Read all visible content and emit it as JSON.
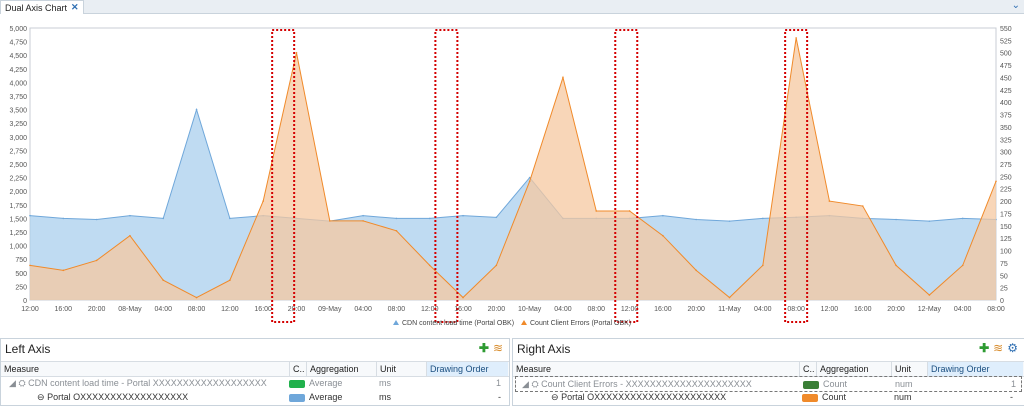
{
  "tab": {
    "title": "Dual Axis Chart"
  },
  "colors": {
    "blue": "#aacfee",
    "blue_line": "#6fa7da",
    "orange": "#f6c8a0",
    "orange_line": "#f08a2a",
    "overlap": "#dccbbb",
    "highlight": "#d40000",
    "green": "#21b14c",
    "darkgreen": "#3a7f36"
  },
  "chart_data": {
    "type": "area",
    "left_axis": {
      "ylim": [
        0,
        5000
      ],
      "ticks": [
        "0",
        "250",
        "500",
        "750",
        "1,000",
        "1,250",
        "1,500",
        "1,750",
        "2,000",
        "2,250",
        "2,500",
        "2,750",
        "3,000",
        "3,250",
        "3,500",
        "3,750",
        "4,000",
        "4,250",
        "4,500",
        "4,750",
        "5,000"
      ]
    },
    "right_axis": {
      "ylim": [
        0,
        550
      ],
      "ticks": [
        "0",
        "25",
        "50",
        "75",
        "100",
        "125",
        "150",
        "175",
        "200",
        "225",
        "250",
        "275",
        "300",
        "325",
        "350",
        "375",
        "400",
        "425",
        "450",
        "475",
        "500",
        "525",
        "550"
      ]
    },
    "x_ticks": [
      "12:00",
      "16:00",
      "20:00",
      "08-May",
      "04:00",
      "08:00",
      "12:00",
      "16:00",
      "20:00",
      "09-May",
      "04:00",
      "08:00",
      "12:00",
      "16:00",
      "20:00",
      "10-May",
      "04:00",
      "08:00",
      "12:00",
      "16:00",
      "20:00",
      "11-May",
      "04:00",
      "08:00",
      "12:00",
      "16:00",
      "20:00",
      "12-May",
      "04:00",
      "08:00"
    ],
    "legend": [
      "CDN content load time (Portal OBK)",
      "Count Client Errors (Portal OBK)"
    ],
    "series": [
      {
        "name": "CDN content load time (Portal OBK)",
        "axis": "left",
        "x": [
          0,
          1,
          2,
          3,
          4,
          5,
          6,
          7,
          8,
          9,
          10,
          11,
          12,
          13,
          14,
          15,
          16,
          17,
          18,
          19,
          20,
          21,
          22,
          23,
          24,
          25,
          26,
          27,
          28,
          29
        ],
        "values": [
          1550,
          1500,
          1480,
          1550,
          1500,
          3500,
          1500,
          1550,
          1500,
          1450,
          1550,
          1500,
          1500,
          1550,
          1520,
          2250,
          1500,
          1500,
          1500,
          1550,
          1480,
          1450,
          1500,
          1520,
          1550,
          1500,
          1480,
          1450,
          1500,
          1480
        ]
      },
      {
        "name": "Count Client Errors (Portal OBK)",
        "axis": "right",
        "x": [
          0,
          1,
          2,
          3,
          4,
          5,
          6,
          7,
          8,
          9,
          10,
          11,
          12,
          13,
          14,
          15,
          16,
          17,
          18,
          19,
          20,
          21,
          22,
          23,
          24,
          25,
          26,
          27,
          28,
          29
        ],
        "values": [
          70,
          60,
          80,
          130,
          40,
          5,
          40,
          200,
          500,
          160,
          160,
          140,
          70,
          5,
          70,
          240,
          450,
          180,
          180,
          130,
          60,
          5,
          70,
          530,
          200,
          190,
          70,
          10,
          70,
          240
        ]
      }
    ],
    "highlight_x": [
      7.6,
      12.5,
      17.9,
      23.0
    ]
  },
  "left_panel": {
    "title": "Left Axis",
    "headers": {
      "measure": "Measure",
      "c": "C..",
      "aggregation": "Aggregation",
      "unit": "Unit",
      "order": "Drawing Order"
    },
    "rows": [
      {
        "measure": "CDN content load time - Portal XXXXXXXXXXXXXXXXXXX",
        "aggregation": "Average",
        "unit": "ms",
        "order": "1",
        "color": "#21b14c"
      },
      {
        "measure": "Portal OXXXXXXXXXXXXXXXXXX",
        "aggregation": "Average",
        "unit": "ms",
        "order": "-",
        "color": "#6fa7da"
      }
    ]
  },
  "right_panel": {
    "title": "Right Axis",
    "headers": {
      "measure": "Measure",
      "c": "C..",
      "aggregation": "Aggregation",
      "unit": "Unit",
      "order": "Drawing Order"
    },
    "rows": [
      {
        "measure": "Count Client Errors - XXXXXXXXXXXXXXXXXXXXX",
        "aggregation": "Count",
        "unit": "num",
        "order": "1",
        "color": "#3a7f36"
      },
      {
        "measure": "Portal OXXXXXXXXXXXXXXXXXXXXXX",
        "aggregation": "Count",
        "unit": "num",
        "order": "-",
        "color": "#f08a2a"
      }
    ]
  }
}
